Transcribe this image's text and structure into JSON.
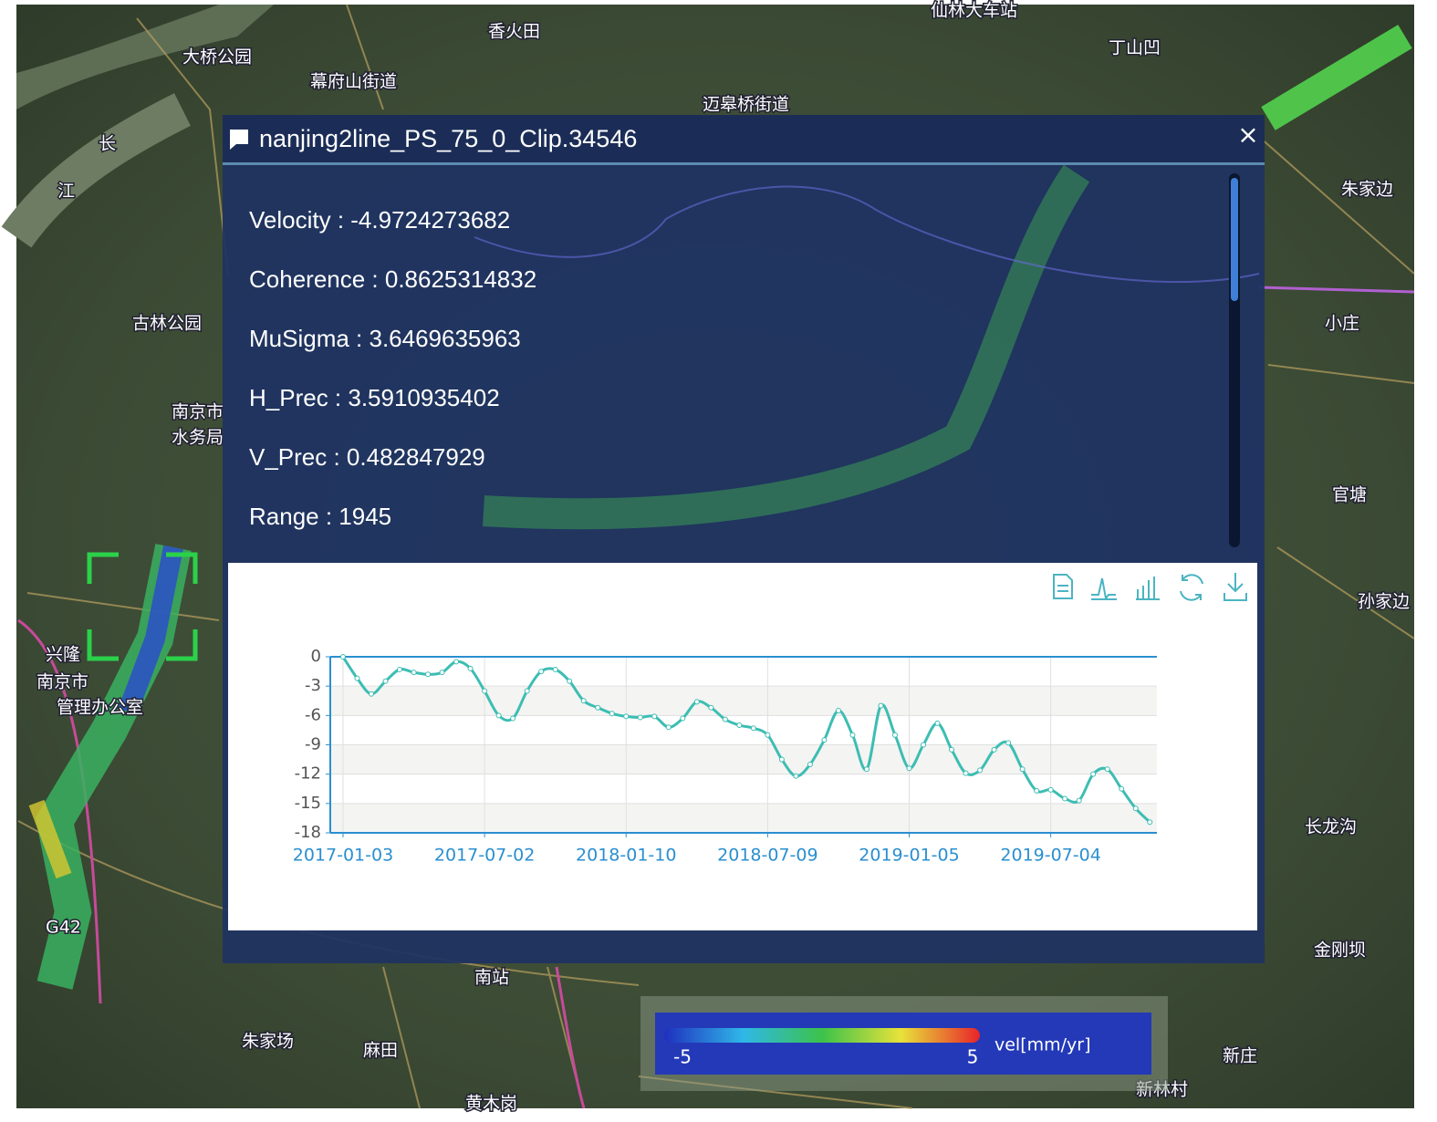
{
  "popup": {
    "title": "nanjing2line_PS_75_0_Clip.34546",
    "close": "×",
    "fields": [
      "Velocity : -4.9724273682",
      "Coherence : 0.8625314832",
      "MuSigma : 3.6469635963",
      "H_Prec : 3.5910935402",
      "V_Prec : 0.482847929",
      "Range : 1945"
    ],
    "chart_data": {
      "type": "line",
      "values": [
        0,
        -2.2,
        -3.8,
        -2.5,
        -1.3,
        -1.6,
        -1.8,
        -1.6,
        -0.5,
        -1.2,
        -3.5,
        -6,
        -6.3,
        -3.5,
        -1.5,
        -1.3,
        -2.5,
        -4.5,
        -5.2,
        -5.8,
        -6.1,
        -6.2,
        -6.1,
        -7.2,
        -6.3,
        -4.6,
        -5.2,
        -6.4,
        -7,
        -7.3,
        -8,
        -10.5,
        -12.2,
        -11,
        -8.5,
        -5.5,
        -8,
        -11.5,
        -5,
        -8,
        -11.4,
        -9,
        -6.8,
        -9.5,
        -11.9,
        -11.6,
        -9.5,
        -8.8,
        -11.5,
        -13.7,
        -13.6,
        -14.5,
        -14.7,
        -12,
        -11.5,
        -13.5,
        -15.5,
        -16.9
      ],
      "color": "#3dbdb3",
      "xlim": [
        -0.9,
        57.5
      ],
      "xticks": [
        {
          "value": 0,
          "label": "2017-01-03"
        },
        {
          "value": 10,
          "label": "2017-07-02"
        },
        {
          "value": 20,
          "label": "2018-01-10"
        },
        {
          "value": 30,
          "label": "2018-07-09"
        },
        {
          "value": 40,
          "label": "2019-01-05"
        },
        {
          "value": 50,
          "label": "2019-07-04"
        }
      ],
      "ylim": [
        -18,
        0
      ],
      "yticks": [
        0,
        -3,
        -6,
        -9,
        -12,
        -15,
        -18
      ],
      "grid": true
    }
  },
  "legend": {
    "min": -5,
    "max": 5,
    "unit": "vel[mm/yr]"
  },
  "map": {
    "labels": [
      "香火田",
      "大桥公园",
      "幕府山街道",
      "仙林大车站",
      "丁山凹",
      "迈皋桥街道",
      "长",
      "江",
      "朱家边",
      "古林公园",
      "小庄",
      "南京市",
      "水务局",
      "官塘",
      "孙家边",
      "兴隆",
      "南京市",
      "管理办公室",
      "长龙沟",
      "G42",
      "金刚坝",
      "朱家场",
      "麻田",
      "南站",
      "新庄",
      "新林村",
      "黄木岗"
    ]
  }
}
